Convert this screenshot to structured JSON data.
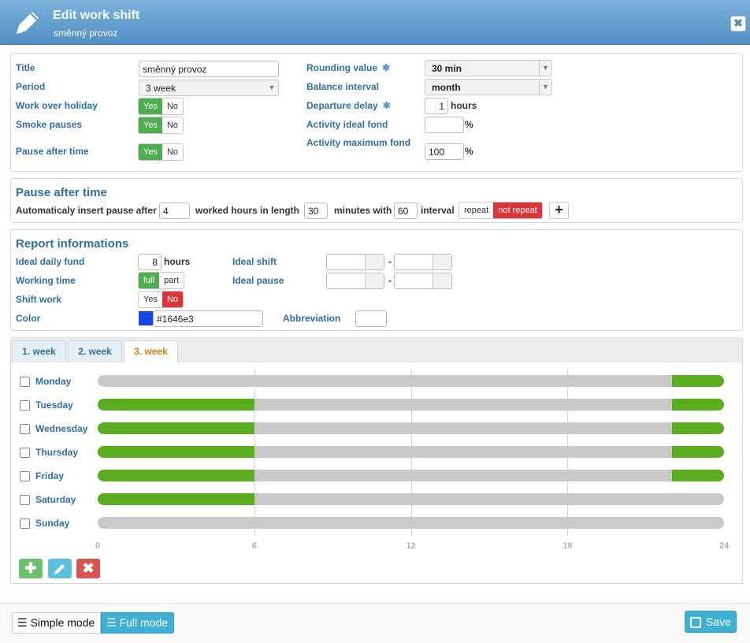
{
  "window": {
    "title": "Edit work shift",
    "subtitle": "směnný provoz",
    "close_icon": "close-icon"
  },
  "general": {
    "title_label": "Title",
    "title_value": "směnný provoz",
    "period_label": "Period",
    "period_value": "3 week",
    "work_over_holiday_label": "Work over holiday",
    "smoke_pauses_label": "Smoke pauses",
    "pause_after_time_label": "Pause after time",
    "yes": "Yes",
    "no": "No",
    "rounding_value_label": "Rounding value",
    "rounding_value": "30 min",
    "balance_interval_label": "Balance interval",
    "balance_interval_value": "month",
    "departure_delay_label": "Departure delay",
    "departure_delay_value": "1",
    "hours": "hours",
    "activity_ideal_fond_label": "Activity ideal fond",
    "activity_ideal_fond_value": "",
    "activity_maximum_fond_label": "Activity maximum fond",
    "activity_maximum_fond_value": "100",
    "percent": "%"
  },
  "pause": {
    "heading": "Pause after time",
    "insert_label": "Automaticaly insert pause after",
    "after_value": "4",
    "worked_label": "worked hours in length",
    "length_value": "30",
    "minutes_label": "minutes with",
    "interval_value": "60",
    "interval_label": "interval",
    "repeat": "repeat",
    "not_repeat": "not repeat",
    "add_icon": "plus-icon"
  },
  "report": {
    "heading": "Report informations",
    "ideal_daily_fund_label": "Ideal daily fund",
    "ideal_daily_fund_value": "8",
    "hours": "hours",
    "working_time_label": "Working time",
    "full": "full",
    "part": "part",
    "shift_work_label": "Shift work",
    "yes": "Yes",
    "no": "No",
    "color_label": "Color",
    "color_value": "#1646e3",
    "ideal_shift_label": "Ideal shift",
    "ideal_pause_label": "Ideal pause",
    "dash": "-",
    "abbreviation_label": "Abbreviation",
    "abbreviation_value": ""
  },
  "tabs": [
    "1. week",
    "2. week",
    "3. week"
  ],
  "active_tab": "3. week",
  "schedule": {
    "days": [
      {
        "name": "Monday",
        "segments": [
          [
            22,
            24
          ]
        ]
      },
      {
        "name": "Tuesday",
        "segments": [
          [
            0,
            6
          ],
          [
            22,
            24
          ]
        ]
      },
      {
        "name": "Wednesday",
        "segments": [
          [
            0,
            6
          ],
          [
            22,
            24
          ]
        ]
      },
      {
        "name": "Thursday",
        "segments": [
          [
            0,
            6
          ],
          [
            22,
            24
          ]
        ]
      },
      {
        "name": "Friday",
        "segments": [
          [
            0,
            6
          ],
          [
            22,
            24
          ]
        ]
      },
      {
        "name": "Saturday",
        "segments": [
          [
            0,
            6
          ]
        ]
      },
      {
        "name": "Sunday",
        "segments": []
      }
    ],
    "ticks": [
      "0",
      "6",
      "12",
      "18",
      "24"
    ],
    "colors": {
      "work": "#59ad1f",
      "empty": "#c9c9c9"
    }
  },
  "footer": {
    "simple_mode": "Simple mode",
    "full_mode": "Full mode",
    "save": "Save"
  },
  "colors": {
    "header": "#5a97c8",
    "accent": "#3eb0d4",
    "yes_green": "#4fae4f",
    "no_red": "#d9363c"
  }
}
